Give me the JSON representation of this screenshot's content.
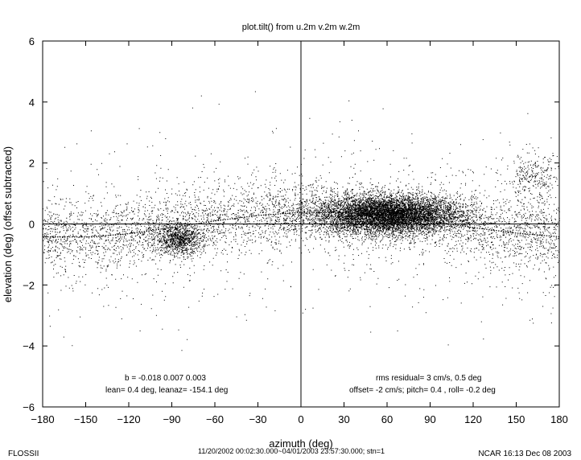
{
  "chart_data": {
    "type": "scatter",
    "title": "plot.tilt() from u.2m v.2m w.2m",
    "xlabel": "azimuth (deg)",
    "ylabel": "elevation (deg)  (offset subtracted)",
    "xlim": [
      -180,
      180
    ],
    "ylim": [
      -6,
      6
    ],
    "xticks": [
      -180,
      -150,
      -120,
      -90,
      -60,
      -30,
      0,
      30,
      60,
      90,
      120,
      150,
      180
    ],
    "yticks": [
      -6,
      -4,
      -2,
      0,
      2,
      4,
      6
    ],
    "grid": false,
    "reference_lines": {
      "x": 0,
      "y": 0
    },
    "point_color": "#000000",
    "clusters": [
      {
        "x_center": 60,
        "y_center": 0.3,
        "x_spread": 25,
        "y_spread": 0.3,
        "density": "very high"
      },
      {
        "x_center": -85,
        "y_center": -0.5,
        "x_spread": 8,
        "y_spread": 0.25,
        "density": "medium"
      },
      {
        "x_center": 162,
        "y_center": 1.5,
        "x_spread": 10,
        "y_spread": 0.4,
        "density": "low"
      }
    ],
    "fit_curve": {
      "x": [
        -180,
        -150,
        -120,
        -90,
        -60,
        -30,
        0,
        30,
        60,
        90,
        120,
        150,
        180
      ],
      "y": [
        -0.42,
        -0.43,
        -0.32,
        -0.12,
        0.1,
        0.28,
        0.38,
        0.37,
        0.28,
        0.1,
        -0.12,
        -0.3,
        -0.42
      ]
    },
    "annotations_left": [
      "b = -0.018  0.007  0.003",
      "lean= 0.4 deg, leanaz= -154.1 deg"
    ],
    "annotations_right": [
      "rms residual= 3 cm/s, 0.5 deg",
      "offset= -2 cm/s; pitch=  0.4 , roll= -0.2 deg"
    ]
  },
  "footer": {
    "left": "FLOSSII",
    "center": "11/20/2002 00:02:30.000~04/01/2003 23:57:30.000; stn=1",
    "right": "NCAR 16:13 Dec 08 2003"
  }
}
